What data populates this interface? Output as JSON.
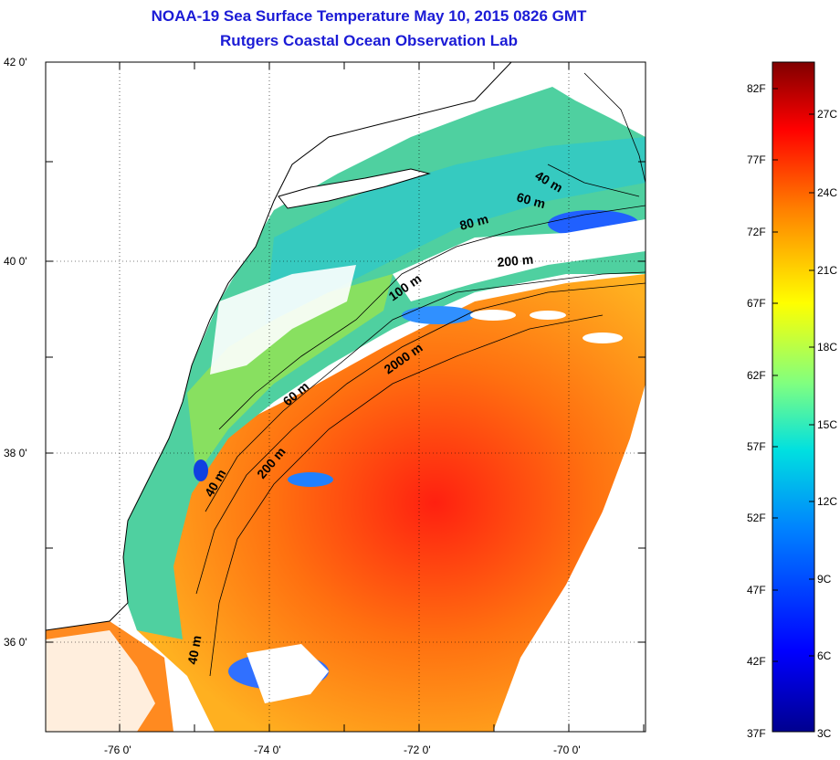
{
  "title": "NOAA-19 Sea Surface Temperature May 10, 2015 0826 GMT",
  "subtitle": "Rutgers Coastal Ocean Observation Lab",
  "lat_labels": [
    "42 0'",
    "40 0'",
    "38 0'",
    "36 0'"
  ],
  "lon_labels": [
    "-76 0'",
    "-74 0'",
    "-72 0'",
    "-70 0'"
  ],
  "isobaths": [
    "40 m",
    "60 m",
    "80 m",
    "200 m",
    "100 m",
    "2000 m",
    "60 m",
    "200 m",
    "40 m",
    "40 m"
  ],
  "colorbar_f": [
    "82F",
    "77F",
    "72F",
    "67F",
    "62F",
    "57F",
    "52F",
    "47F",
    "42F",
    "37F"
  ],
  "colorbar_c": [
    "27C",
    "24C",
    "21C",
    "18C",
    "15C",
    "12C",
    "9C",
    "6C",
    "3C"
  ],
  "colors": {
    "title": "#1b1bd6",
    "land": "#ffffff",
    "coast": "#000000"
  }
}
